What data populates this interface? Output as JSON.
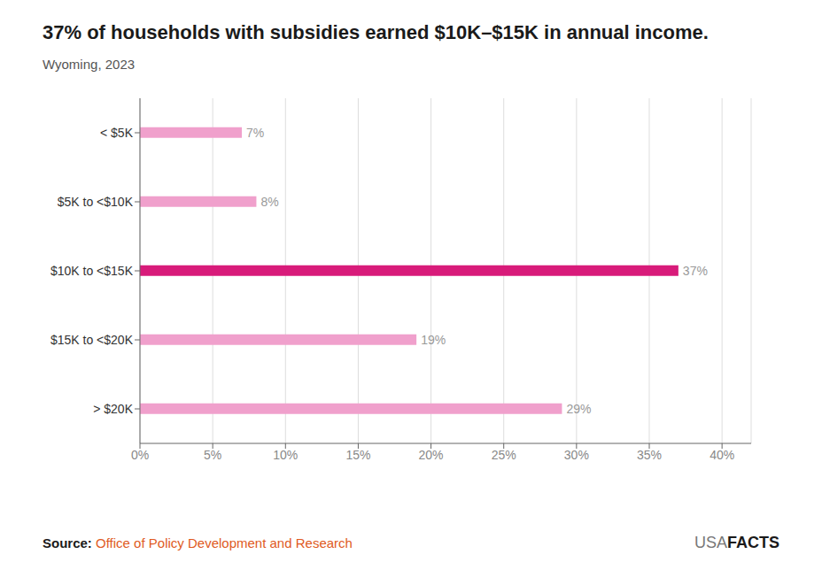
{
  "chart_data": {
    "type": "bar",
    "orientation": "horizontal",
    "title": "37% of households with subsidies earned $10K–$15K in annual income.",
    "subtitle": "Wyoming, 2023",
    "categories": [
      "< $5K",
      "$5K to <$10K",
      "$10K to <$15K",
      "$15K to <$20K",
      "> $20K"
    ],
    "values": [
      7,
      8,
      37,
      19,
      29
    ],
    "value_labels": [
      "7%",
      "8%",
      "37%",
      "19%",
      "29%"
    ],
    "data_labels": true,
    "colors": [
      "#f0a0cc",
      "#f0a0cc",
      "#d81b7a",
      "#f0a0cc",
      "#f0a0cc"
    ],
    "xlim": [
      0,
      42
    ],
    "xticks": [
      {
        "value": 0,
        "label": "0%"
      },
      {
        "value": 5,
        "label": "5%"
      },
      {
        "value": 10,
        "label": "10%"
      },
      {
        "value": 15,
        "label": "15%"
      },
      {
        "value": 20,
        "label": "20%"
      },
      {
        "value": 25,
        "label": "25%"
      },
      {
        "value": 30,
        "label": "30%"
      },
      {
        "value": 35,
        "label": "35%"
      },
      {
        "value": 40,
        "label": "40%"
      }
    ],
    "grid": true,
    "annotations": [
      {
        "text": "Source:",
        "color": "#1a1a1a"
      },
      {
        "text": "Office of Policy Development and Research",
        "color": "#e05a1e"
      },
      {
        "text": "USA",
        "color": "#777777"
      },
      {
        "text": "FACTS",
        "color": "#1a1a1a"
      }
    ]
  }
}
